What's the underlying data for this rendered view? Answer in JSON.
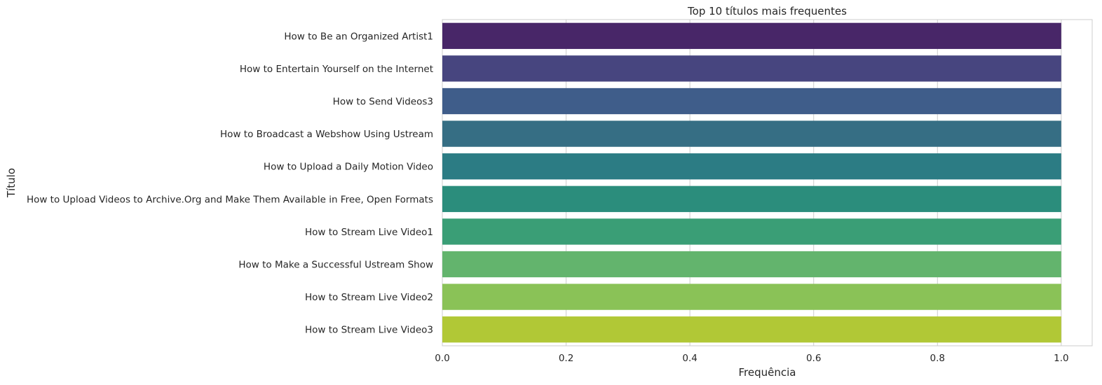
{
  "chart_data": {
    "type": "bar",
    "orientation": "horizontal",
    "title": "Top 10 títulos mais frequentes",
    "xlabel": "Frequência",
    "ylabel": "Título",
    "categories": [
      "How to Be an Organized Artist1",
      "How to Entertain Yourself on the Internet",
      "How to Send Videos3",
      "How to Broadcast a Webshow Using Ustream",
      "How to Upload a Daily Motion Video",
      "How to Upload Videos to Archive.Org and Make Them Available in Free, Open Formats",
      "How to Stream Live Video1",
      "How to Make a Successful Ustream Show",
      "How to Stream Live Video2",
      "How to Stream Live Video3"
    ],
    "values": [
      1,
      1,
      1,
      1,
      1,
      1,
      1,
      1,
      1,
      1
    ],
    "xlim": [
      0,
      1.05
    ],
    "xticks": [
      "0.0",
      "0.2",
      "0.4",
      "0.6",
      "0.8",
      "1.0"
    ],
    "xtick_values": [
      0,
      0.2,
      0.4,
      0.6,
      0.8,
      1.0
    ],
    "grid": true,
    "palette": "viridis",
    "colors": [
      "#482668",
      "#47457f",
      "#3f5d8a",
      "#366e84",
      "#2c7c84",
      "#2b8d7c",
      "#3a9e76",
      "#63b46d",
      "#8ac257",
      "#b1c836"
    ]
  }
}
